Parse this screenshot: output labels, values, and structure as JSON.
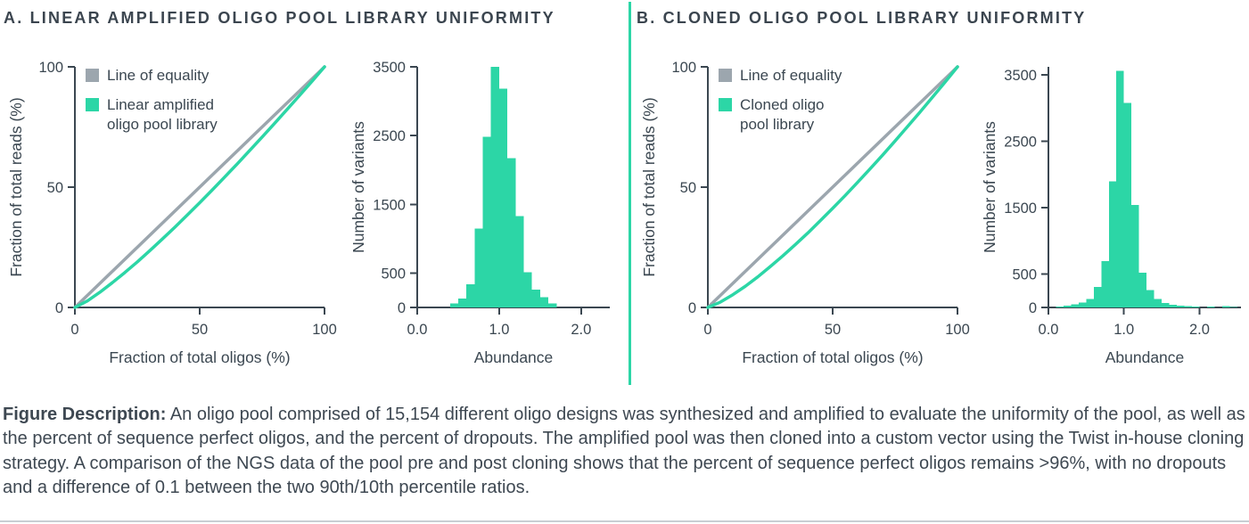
{
  "colors": {
    "green": "#2CD6A6",
    "gray": "#9CA6AE",
    "axis": "#3B4751",
    "title": "#3B454F",
    "text": "#3E4852",
    "rule": "#C9CED3"
  },
  "panels": [
    {
      "title": "A. LINEAR AMPLIFIED OLIGO POOL LIBRARY UNIFORMITY"
    },
    {
      "title": "B. CLONED OLIGO POOL LIBRARY UNIFORMITY"
    }
  ],
  "description": {
    "label": "Figure Description:",
    "text": "An oligo pool comprised of 15,154 different oligo designs was synthesized and amplified to evaluate the uniformity of the pool, as well as the percent of sequence perfect oligos, and the percent of dropouts. The amplified pool was then cloned into a custom vector using the Twist in-house cloning strategy. A comparison of the NGS data of the pool pre and post cloning shows that the percent of sequence perfect oligos remains >96%, with no dropouts and a difference of 0.1 between the two 90th/10th percentile ratios."
  },
  "chart_data": [
    {
      "id": "panel-a-cumulative",
      "type": "line",
      "title": "",
      "xlabel": "Fraction of total oligos (%)",
      "ylabel": "Fraction of total reads (%)",
      "xlim": [
        0,
        100
      ],
      "ylim": [
        0,
        100
      ],
      "xticks": [
        0,
        50,
        100
      ],
      "xtick_labels": [
        "0",
        "50",
        "100"
      ],
      "yticks": [
        0,
        50,
        100
      ],
      "ytick_labels": [
        "0",
        "50",
        "100"
      ],
      "grid": false,
      "legend_position": "top-left",
      "series": [
        {
          "name": "Line of equality",
          "legend_lines": [
            "Line of equality"
          ],
          "color": "#9CA6AE",
          "x": [
            0,
            100
          ],
          "y": [
            0,
            100
          ]
        },
        {
          "name": "Linear amplified oligo pool library",
          "legend_lines": [
            "Linear amplified",
            "oligo pool library"
          ],
          "color": "#2CD6A6",
          "x": [
            0,
            5,
            10,
            15,
            20,
            25,
            30,
            35,
            40,
            45,
            50,
            55,
            60,
            65,
            70,
            75,
            80,
            85,
            90,
            95,
            100
          ],
          "y": [
            0,
            2.7,
            6.3,
            10.3,
            14.5,
            18.9,
            23.6,
            28.4,
            33.3,
            38.4,
            43.5,
            48.8,
            54.2,
            59.6,
            65.2,
            70.8,
            76.5,
            82.3,
            88.1,
            94.0,
            100
          ]
        }
      ]
    },
    {
      "id": "panel-a-histogram",
      "type": "bar",
      "title": "",
      "xlabel": "Abundance",
      "ylabel": "Number of variants",
      "xlim": [
        0,
        2.35
      ],
      "ylim": [
        0,
        3500
      ],
      "xticks": [
        0,
        1,
        2
      ],
      "xtick_labels": [
        "0.0",
        "1.0",
        "2.0"
      ],
      "yticks": [
        0,
        500,
        1500,
        2500,
        3500
      ],
      "ytick_labels": [
        "0",
        "500",
        "1500",
        "2500",
        "3500"
      ],
      "grid": false,
      "color": "#2CD6A6",
      "bin_width": 0.1,
      "bins_start": 0.4,
      "values": [
        60,
        130,
        340,
        1150,
        2480,
        3500,
        3180,
        2170,
        1330,
        510,
        260,
        150,
        60
      ]
    },
    {
      "id": "panel-b-cumulative",
      "type": "line",
      "title": "",
      "xlabel": "Fraction of total oligos (%)",
      "ylabel": "Fraction of total reads (%)",
      "xlim": [
        0,
        100
      ],
      "ylim": [
        0,
        100
      ],
      "xticks": [
        0,
        50,
        100
      ],
      "xtick_labels": [
        "0",
        "50",
        "100"
      ],
      "yticks": [
        0,
        50,
        100
      ],
      "ytick_labels": [
        "0",
        "50",
        "100"
      ],
      "grid": false,
      "legend_position": "top-left",
      "series": [
        {
          "name": "Line of equality",
          "legend_lines": [
            "Line of equality"
          ],
          "color": "#9CA6AE",
          "x": [
            0,
            100
          ],
          "y": [
            0,
            100
          ]
        },
        {
          "name": "Cloned oligo pool library",
          "legend_lines": [
            "Cloned oligo",
            "pool library"
          ],
          "color": "#2CD6A6",
          "x": [
            0,
            5,
            10,
            15,
            20,
            25,
            30,
            35,
            40,
            45,
            50,
            55,
            60,
            65,
            70,
            75,
            80,
            85,
            90,
            95,
            100
          ],
          "y": [
            0,
            2.2,
            5.3,
            8.8,
            12.7,
            17.0,
            21.4,
            26.1,
            30.9,
            36.0,
            41.2,
            46.5,
            52.0,
            57.6,
            63.3,
            69.2,
            75.2,
            81.2,
            87.4,
            93.6,
            100
          ]
        }
      ]
    },
    {
      "id": "panel-b-histogram",
      "type": "bar",
      "title": "",
      "xlabel": "Abundance",
      "ylabel": "Number of variants",
      "xlim": [
        0,
        2.55
      ],
      "ylim": [
        0,
        3620
      ],
      "xticks": [
        0,
        1,
        2
      ],
      "xtick_labels": [
        "0.0",
        "1.0",
        "2.0"
      ],
      "yticks": [
        0,
        500,
        1500,
        2500,
        3500
      ],
      "ytick_labels": [
        "0",
        "500",
        "1500",
        "2500",
        "3500"
      ],
      "grid": false,
      "color": "#2CD6A6",
      "bin_width": 0.1,
      "bins_start": 0.1,
      "values": [
        15,
        25,
        45,
        75,
        130,
        310,
        700,
        1900,
        3560,
        3080,
        1540,
        520,
        260,
        130,
        70,
        40,
        25,
        20,
        15,
        0,
        12,
        0,
        18,
        10
      ]
    }
  ]
}
